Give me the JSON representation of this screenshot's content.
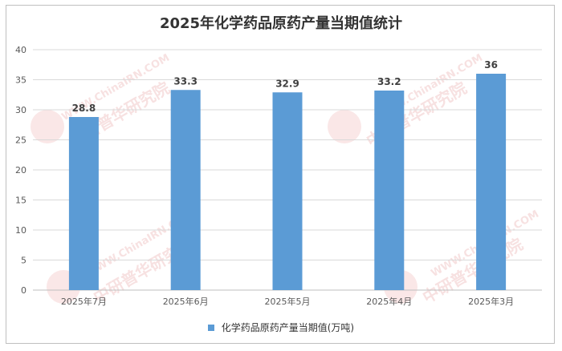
{
  "chart_data": {
    "type": "bar",
    "title": "2025年化学药品原药产量当期值统计",
    "categories": [
      "2025年7月",
      "2025年6月",
      "2025年5月",
      "2025年4月",
      "2025年3月"
    ],
    "series": [
      {
        "name": "化学药品原药产量当期值(万吨)",
        "values": [
          28.8,
          33.3,
          32.9,
          33.2,
          36
        ]
      }
    ],
    "data_labels": [
      "28.8",
      "33.3",
      "32.9",
      "33.2",
      "36"
    ],
    "ylim": [
      0,
      40
    ],
    "yticks": [
      0,
      5,
      10,
      15,
      20,
      25,
      30,
      35,
      40
    ],
    "grid": true,
    "legend": "bottom",
    "colors": {
      "bar": "#5b9bd5",
      "grid": "#d9d9d9",
      "axis": "#bfbfbf",
      "text": "#595959"
    }
  },
  "watermark": {
    "brand": "中研普华研究院",
    "url": "WWW.ChinaIRN.COM",
    "logo": "CIRN"
  }
}
